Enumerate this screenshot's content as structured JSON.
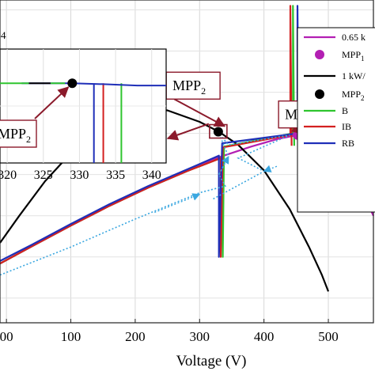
{
  "chart_data": {
    "type": "line",
    "xlabel": "Voltage (V)",
    "xlim": [
      -10,
      570
    ],
    "ylim": [
      -0.3,
      3.62
    ],
    "x_ticks": [
      {
        "v": 0,
        "label": "00"
      },
      {
        "v": 100,
        "label": "100"
      },
      {
        "v": 200,
        "label": "200"
      },
      {
        "v": 300,
        "label": "300"
      },
      {
        "v": 400,
        "label": "400"
      },
      {
        "v": 500,
        "label": "500"
      }
    ],
    "series": [
      {
        "name": "0.65 k",
        "color": "#b31fb3",
        "points": [
          [
            -10,
            0.42
          ],
          [
            40,
            0.63
          ],
          [
            100,
            0.88
          ],
          [
            160,
            1.12
          ],
          [
            220,
            1.34
          ],
          [
            280,
            1.54
          ],
          [
            330,
            1.71
          ],
          [
            380,
            1.84
          ],
          [
            420,
            1.93
          ],
          [
            452,
            1.98
          ],
          [
            475,
            1.96
          ],
          [
            500,
            1.84
          ],
          [
            530,
            1.56
          ],
          [
            560,
            1.16
          ],
          [
            570,
            1.0
          ]
        ]
      },
      {
        "name": "1 kW/",
        "color": "#000000",
        "points": [
          [
            -10,
            0.67
          ],
          [
            20,
            1.0
          ],
          [
            60,
            1.42
          ],
          [
            100,
            1.76
          ],
          [
            150,
            2.1
          ],
          [
            200,
            2.3
          ],
          [
            250,
            2.28
          ],
          [
            300,
            2.14
          ],
          [
            330,
            2.02
          ],
          [
            360,
            1.86
          ],
          [
            400,
            1.55
          ],
          [
            440,
            1.08
          ],
          [
            470,
            0.62
          ],
          [
            490,
            0.28
          ],
          [
            500,
            0.08
          ]
        ]
      },
      {
        "name": "B",
        "color": "#2fc52f",
        "points": [
          [
            -10,
            0.42
          ],
          [
            40,
            0.63
          ],
          [
            100,
            0.88
          ],
          [
            160,
            1.12
          ],
          [
            220,
            1.34
          ],
          [
            280,
            1.54
          ],
          [
            336,
            1.71
          ],
          [
            336,
            0.5
          ],
          [
            338,
            1.84
          ],
          [
            445,
            2.0
          ],
          [
            445,
            2.5
          ],
          [
            445,
            3.55
          ],
          [
            447,
            1.85
          ]
        ]
      },
      {
        "name": "IB",
        "color": "#d42020",
        "points": [
          [
            -10,
            0.42
          ],
          [
            40,
            0.63
          ],
          [
            100,
            0.88
          ],
          [
            160,
            1.12
          ],
          [
            220,
            1.34
          ],
          [
            280,
            1.54
          ],
          [
            333,
            1.7
          ],
          [
            333,
            0.5
          ],
          [
            336,
            1.83
          ],
          [
            441,
            1.98
          ],
          [
            441,
            3.55
          ],
          [
            443,
            1.85
          ]
        ]
      },
      {
        "name": "RB",
        "color": "#1f2fb8",
        "points": [
          [
            -10,
            0.45
          ],
          [
            40,
            0.65
          ],
          [
            100,
            0.9
          ],
          [
            160,
            1.14
          ],
          [
            220,
            1.36
          ],
          [
            280,
            1.56
          ],
          [
            330,
            1.73
          ],
          [
            330,
            0.5
          ],
          [
            335,
            1.88
          ],
          [
            452,
            2.0
          ],
          [
            452,
            3.55
          ],
          [
            454,
            1.85
          ]
        ]
      }
    ],
    "dotted_path": {
      "color": "#3aa7e0",
      "points": [
        [
          -10,
          0.28
        ],
        [
          100,
          0.62
        ],
        [
          200,
          0.96
        ],
        [
          300,
          1.28
        ],
        [
          340,
          1.36
        ],
        [
          330,
          1.5
        ],
        [
          345,
          1.72
        ],
        [
          330,
          2.0
        ],
        [
          345,
          1.86
        ],
        [
          440,
          1.98
        ],
        [
          360,
          1.7
        ],
        [
          400,
          1.54
        ],
        [
          320,
          1.2
        ]
      ],
      "arrows": [
        [
          [
            230,
            1.04
          ],
          [
            300,
            1.26
          ]
        ],
        [
          [
            330,
            1.5
          ],
          [
            345,
            1.72
          ]
        ],
        [
          [
            420,
            1.6
          ],
          [
            400,
            1.54
          ]
        ]
      ]
    },
    "mpp_points": [
      {
        "label": "MPP",
        "sub": "1",
        "x": 452,
        "y": 1.98,
        "color": "#b31fb3",
        "callout_label_x": 462,
        "callout_label_y": 2.23
      },
      {
        "label": "MPP",
        "sub": "2",
        "x": 329,
        "y": 2.02,
        "color": "#000000",
        "callout_label_x": 290,
        "callout_label_y": 2.58
      }
    ],
    "legend": {
      "placement": "top-right",
      "entries": [
        {
          "label": "0.65 k",
          "sub": "",
          "kind": "line",
          "color": "#b31fb3"
        },
        {
          "label": "MPP",
          "sub": "1",
          "kind": "dot",
          "color": "#b31fb3"
        },
        {
          "label": "1 kW/",
          "sub": "",
          "kind": "line",
          "color": "#000000"
        },
        {
          "label": "MPP",
          "sub": "2",
          "kind": "dot",
          "color": "#000000"
        },
        {
          "label": "B",
          "sub": "",
          "kind": "line",
          "color": "#2fc52f"
        },
        {
          "label": "IB",
          "sub": "",
          "kind": "line",
          "color": "#d42020"
        },
        {
          "label": "RB",
          "sub": "",
          "kind": "line",
          "color": "#1f2fb8"
        }
      ]
    },
    "inset": {
      "xlim": [
        319,
        342
      ],
      "ylim": [
        0,
        1
      ],
      "x_ticks": [
        {
          "v": 320,
          "label": "320"
        },
        {
          "v": 325,
          "label": "325"
        },
        {
          "v": 330,
          "label": "330"
        },
        {
          "v": 335,
          "label": "335"
        },
        {
          "v": 340,
          "label": "340"
        }
      ],
      "corner_label": "4",
      "mpp_label": "MPP",
      "mpp_sub": "2",
      "mpp_point": [
        329,
        0.7
      ],
      "flat_line": {
        "color": "#1f2fb8",
        "points": [
          [
            322,
            0.7
          ],
          [
            329,
            0.7
          ],
          [
            334,
            0.69
          ],
          [
            338,
            0.68
          ],
          [
            342,
            0.68
          ]
        ]
      },
      "left_segment": [
        {
          "color": "#2fc52f",
          "points": [
            [
              319,
              0.7
            ],
            [
              323,
              0.7
            ]
          ]
        },
        {
          "color": "#000000",
          "points": [
            [
              323,
              0.7
            ],
            [
              326,
              0.7
            ]
          ]
        },
        {
          "color": "#2fc52f",
          "points": [
            [
              326,
              0.7
            ],
            [
              328,
              0.7
            ]
          ]
        }
      ],
      "drops": [
        {
          "color": "#1f2fb8",
          "x": 332
        },
        {
          "color": "#d42020",
          "x": 333.3
        },
        {
          "color": "#2fc52f",
          "x": 335.8
        }
      ]
    }
  }
}
